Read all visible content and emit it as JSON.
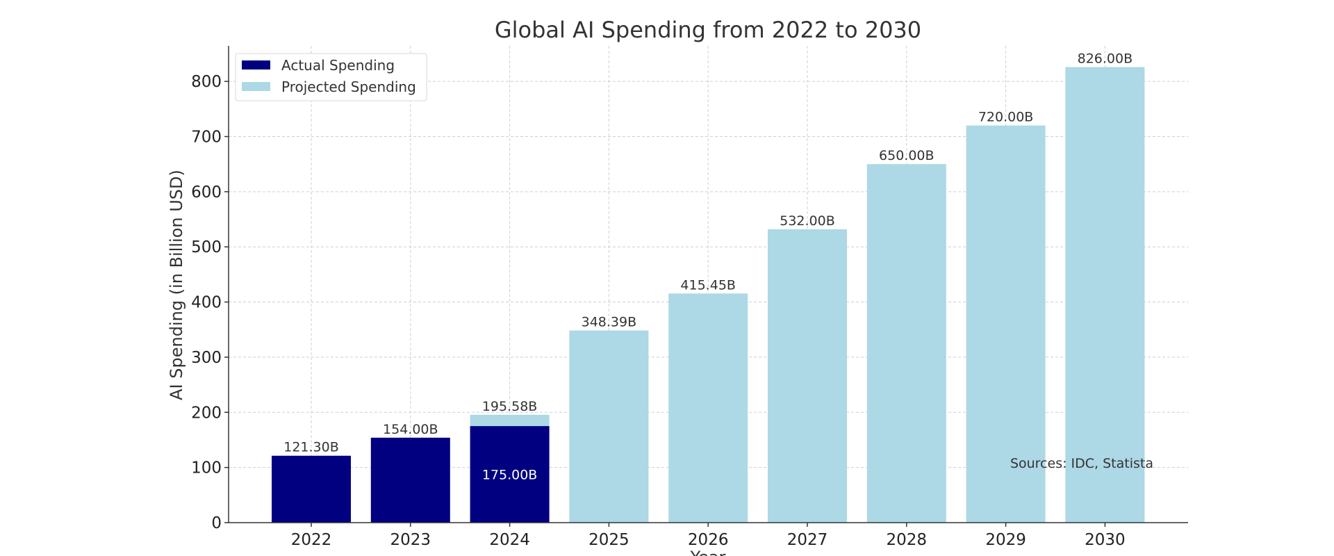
{
  "chart_data": {
    "type": "bar",
    "title": "Global AI Spending from 2022 to 2030",
    "xlabel": "Year",
    "ylabel": "AI Spending (in Billion USD)",
    "categories": [
      "2022",
      "2023",
      "2024",
      "2025",
      "2026",
      "2027",
      "2028",
      "2029",
      "2030"
    ],
    "ylim": [
      0,
      860
    ],
    "yticks": [
      0,
      100,
      200,
      300,
      400,
      500,
      600,
      700,
      800
    ],
    "grid": true,
    "legend_position": "top-left",
    "series": [
      {
        "name": "Actual Spending",
        "color": "#000080",
        "values": [
          121.3,
          154.0,
          175.0,
          null,
          null,
          null,
          null,
          null,
          null
        ],
        "labels": [
          "121.30B",
          "154.00B",
          "175.00B",
          "",
          "",
          "",
          "",
          "",
          ""
        ]
      },
      {
        "name": "Projected Spending",
        "color": "#add8e6",
        "values": [
          null,
          null,
          195.58,
          348.39,
          415.45,
          532.0,
          650.0,
          720.0,
          826.0
        ],
        "labels": [
          "",
          "",
          "195.58B",
          "348.39B",
          "415.45B",
          "532.00B",
          "650.00B",
          "720.00B",
          "826.00B"
        ]
      }
    ],
    "annotation": "Sources: IDC, Statista"
  }
}
